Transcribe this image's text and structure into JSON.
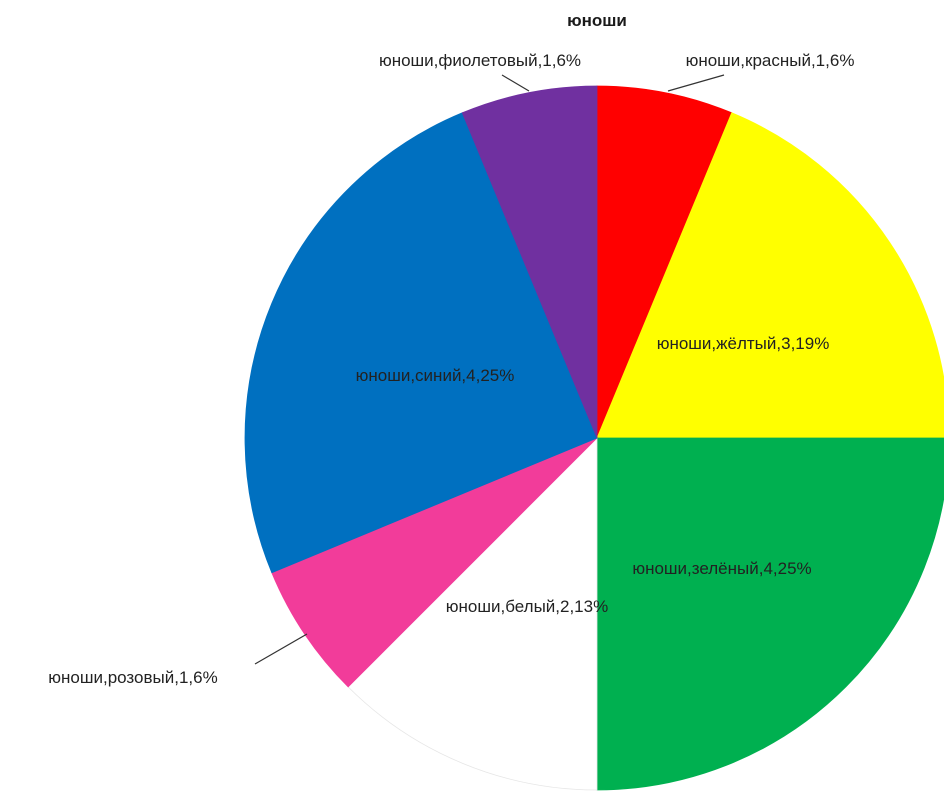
{
  "chart_data": {
    "type": "pie",
    "title": "юноши",
    "series_name": "юноши",
    "slices": [
      {
        "name": "красный",
        "count": 1,
        "percent": 6,
        "label": "юноши,красный,1,6%",
        "color": "#ff0000"
      },
      {
        "name": "жёлтый",
        "count": 3,
        "percent": 19,
        "label": "юноши,жёлтый,3,19%",
        "color": "#ffff00"
      },
      {
        "name": "зелёный",
        "count": 4,
        "percent": 25,
        "label": "юноши,зелёный,4,25%",
        "color": "#00b050"
      },
      {
        "name": "белый",
        "count": 2,
        "percent": 13,
        "label": "юноши,белый,2,13%",
        "color": "#ffffff"
      },
      {
        "name": "розовый",
        "count": 1,
        "percent": 6,
        "label": "юноши,розовый,1,6%",
        "color": "#f23c9a"
      },
      {
        "name": "синий",
        "count": 4,
        "percent": 25,
        "label": "юноши,синий,4,25%",
        "color": "#0070c0"
      },
      {
        "name": "фиолетовый",
        "count": 1,
        "percent": 6,
        "label": "юноши,фиолетовый,1,6%",
        "color": "#7030a0"
      }
    ],
    "start_angle": "12 o'clock",
    "direction": "clockwise",
    "legend": "none"
  }
}
